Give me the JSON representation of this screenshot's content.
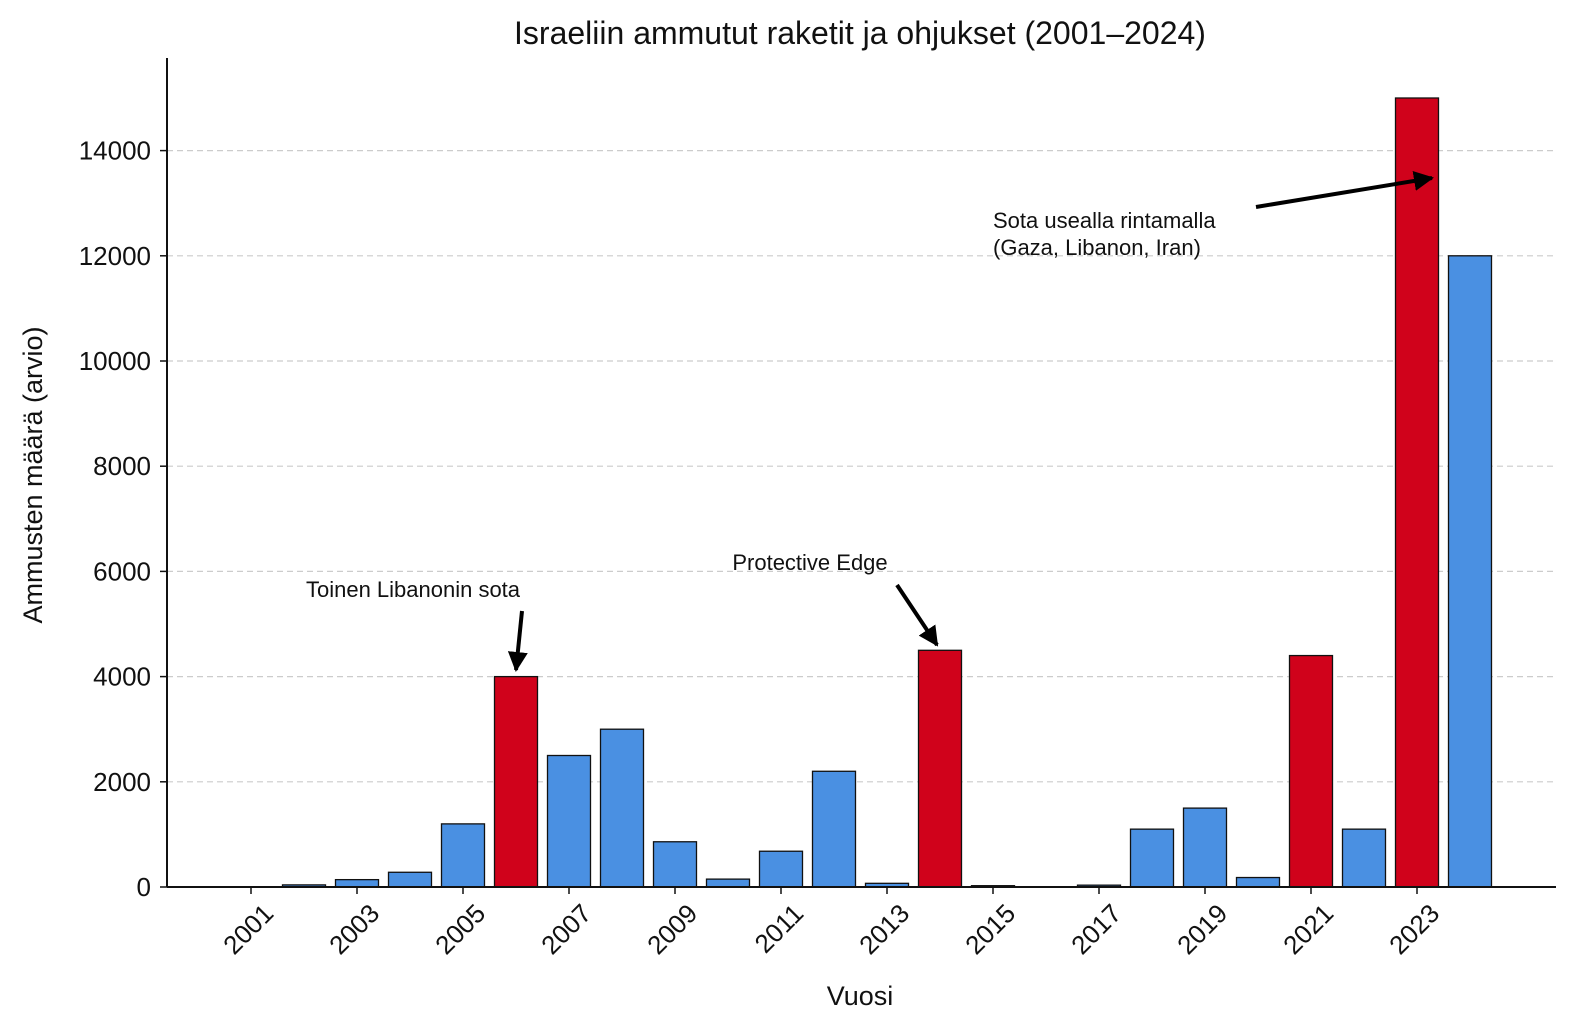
{
  "chart_data": {
    "type": "bar",
    "title": "Israeliin ammutut raketit ja ohjukset (2001–2024)",
    "xlabel": "Vuosi",
    "ylabel": "Ammusten määrä (arvio)",
    "ylim": [
      0,
      15800
    ],
    "yticks": [
      0,
      2000,
      4000,
      6000,
      8000,
      10000,
      12000,
      14000
    ],
    "xtick_labels": [
      "2001",
      "2003",
      "2005",
      "2007",
      "2009",
      "2011",
      "2013",
      "2015",
      "2017",
      "2019",
      "2021",
      "2023"
    ],
    "categories": [
      2001,
      2002,
      2003,
      2004,
      2005,
      2006,
      2007,
      2008,
      2009,
      2010,
      2011,
      2012,
      2013,
      2014,
      2015,
      2016,
      2017,
      2018,
      2019,
      2020,
      2021,
      2022,
      2023,
      2024
    ],
    "values": [
      4,
      40,
      140,
      280,
      1200,
      4000,
      2500,
      3000,
      860,
      150,
      680,
      2200,
      70,
      4500,
      25,
      0,
      35,
      1100,
      1500,
      180,
      4400,
      1100,
      15000,
      12000
    ],
    "highlight": [
      false,
      false,
      false,
      false,
      false,
      true,
      false,
      false,
      false,
      false,
      false,
      false,
      false,
      true,
      false,
      false,
      false,
      false,
      false,
      false,
      true,
      false,
      true,
      false
    ],
    "grid": "y",
    "colors": {
      "normal": "#4a90e2",
      "highlight": "#d0021b",
      "edge": "#111111",
      "grid": "#cccccc"
    },
    "annotations": [
      {
        "lines": [
          "Toinen Libanonin sota"
        ],
        "year": 2006,
        "value": 4000
      },
      {
        "lines": [
          "Protective Edge"
        ],
        "year": 2014,
        "value": 4500
      },
      {
        "lines": [
          "Sota usealla rintamalla",
          "(Gaza, Libanon, Iran)"
        ],
        "year": 2023,
        "value": 13400
      }
    ]
  }
}
